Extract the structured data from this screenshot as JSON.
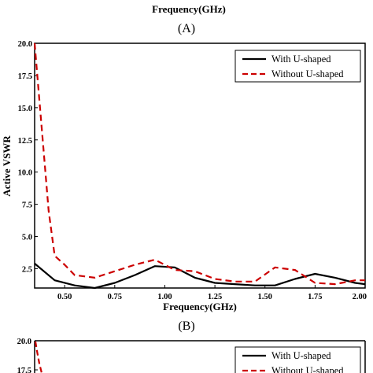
{
  "top_partial": {
    "xlabel": "Frequency(GHz)",
    "panel_label": "(A)"
  },
  "chart_data": [
    {
      "type": "line",
      "panel_label": "(B)",
      "xlabel": "Frequency(GHz)",
      "ylabel": "Active VSWR",
      "xlim": [
        0.35,
        2.0
      ],
      "ylim": [
        1.0,
        20.0
      ],
      "xticks": [
        "0.50",
        "0.75",
        "1.00",
        "1.25",
        "1.50",
        "1.75",
        "2.00"
      ],
      "xtick_values": [
        0.5,
        0.75,
        1.0,
        1.25,
        1.5,
        1.75,
        2.0
      ],
      "yticks": [
        "2.5",
        "5.0",
        "7.5",
        "10.0",
        "12.5",
        "15.0",
        "17.5",
        "20.0"
      ],
      "ytick_values": [
        2.5,
        5.0,
        7.5,
        10.0,
        12.5,
        15.0,
        17.5,
        20.0
      ],
      "grid": false,
      "legend_position": "top-right",
      "series": [
        {
          "name": "With U-shaped",
          "color": "#000000",
          "dash": "solid",
          "x": [
            0.35,
            0.45,
            0.55,
            0.65,
            0.75,
            0.85,
            0.95,
            1.05,
            1.15,
            1.25,
            1.35,
            1.45,
            1.55,
            1.65,
            1.75,
            1.85,
            1.95,
            2.0
          ],
          "y": [
            2.9,
            1.6,
            1.2,
            1.0,
            1.4,
            2.0,
            2.7,
            2.6,
            1.8,
            1.4,
            1.3,
            1.2,
            1.2,
            1.7,
            2.1,
            1.8,
            1.4,
            1.3
          ]
        },
        {
          "name": "Without U-shaped",
          "color": "#cc0000",
          "dash": "dashed",
          "x": [
            0.35,
            0.42,
            0.45,
            0.5,
            0.55,
            0.65,
            0.75,
            0.85,
            0.95,
            1.05,
            1.15,
            1.25,
            1.35,
            1.45,
            1.55,
            1.65,
            1.75,
            1.85,
            1.95,
            2.0
          ],
          "y": [
            20.0,
            7.0,
            3.5,
            2.8,
            2.0,
            1.8,
            2.3,
            2.8,
            3.2,
            2.4,
            2.3,
            1.7,
            1.5,
            1.5,
            2.6,
            2.4,
            1.4,
            1.3,
            1.6,
            1.6
          ]
        }
      ]
    },
    {
      "type": "line",
      "partial": true,
      "ylim_top": "20.0",
      "visible_ytick": "17.5",
      "legend": [
        "With U-shaped",
        "Without U-shaped"
      ]
    }
  ]
}
